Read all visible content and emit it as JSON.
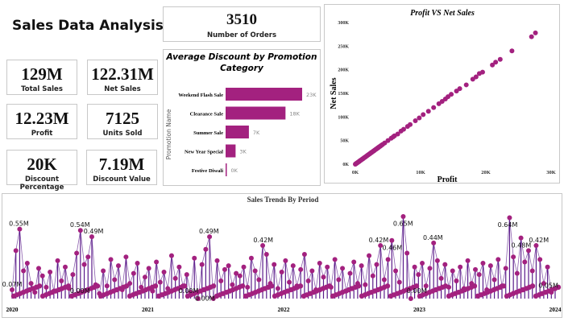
{
  "header": {
    "title": "Sales Data Analysis"
  },
  "kpis": {
    "orders": {
      "value": "3510",
      "label": "Number of Orders"
    },
    "total_sales": {
      "value": "129M",
      "label": "Total Sales"
    },
    "net_sales": {
      "value": "122.31M",
      "label": "Net Sales"
    },
    "profit": {
      "value": "12.23M",
      "label": "Profit"
    },
    "units_sold": {
      "value": "7125",
      "label": "Units Sold"
    },
    "discount_pct": {
      "value": "20K",
      "label": "Discount Percentage"
    },
    "discount_value": {
      "value": "7.19M",
      "label": "Discount Value"
    }
  },
  "colors": {
    "accent": "#a3217f",
    "line": "#5a1a8a",
    "border": "#c8c8c8"
  },
  "chart_data": [
    {
      "type": "bar",
      "orientation": "horizontal",
      "title": "Average Discount by Promotion Category",
      "ylabel": "Promotion Name",
      "categories": [
        "Weekend Flash Sale",
        "Clearance Sale",
        "Summer Sale",
        "New Year Special",
        "Festive Diwali"
      ],
      "values": [
        23000,
        18000,
        7000,
        3000,
        200
      ],
      "data_labels": [
        "23K",
        "18K",
        "7K",
        "3K",
        "0K"
      ]
    },
    {
      "type": "scatter",
      "title": "Profit VS Net Sales",
      "xlabel": "Profit",
      "ylabel": "Net Sales",
      "xlim": [
        0,
        30000
      ],
      "ylim": [
        0,
        300000
      ],
      "xticks": [
        "0K",
        "10K",
        "20K",
        "30K"
      ],
      "yticks": [
        "0K",
        "50K",
        "100K",
        "150K",
        "200K",
        "250K",
        "300K"
      ],
      "points_k": [
        [
          27.6,
          278
        ],
        [
          27,
          270
        ],
        [
          24,
          240
        ],
        [
          22.2,
          222
        ],
        [
          21.5,
          216
        ],
        [
          21,
          210
        ],
        [
          19.5,
          195
        ],
        [
          19,
          192
        ],
        [
          18.5,
          185
        ],
        [
          18,
          180
        ],
        [
          17,
          168
        ],
        [
          16,
          160
        ],
        [
          15.5,
          155
        ],
        [
          14.7,
          148
        ],
        [
          14.2,
          143
        ],
        [
          13.8,
          138
        ],
        [
          13.3,
          133
        ],
        [
          12.8,
          128
        ],
        [
          12,
          120
        ],
        [
          11.2,
          112
        ],
        [
          10.4,
          105
        ],
        [
          9.8,
          98
        ],
        [
          9.2,
          92
        ],
        [
          8.4,
          84
        ],
        [
          8,
          80
        ],
        [
          7.4,
          74
        ],
        [
          7,
          70
        ],
        [
          6.5,
          64
        ],
        [
          6,
          60
        ],
        [
          5.5,
          55
        ],
        [
          5,
          50
        ],
        [
          4.5,
          45
        ],
        [
          4,
          40
        ],
        [
          3.5,
          35
        ],
        [
          3.2,
          32
        ],
        [
          2.8,
          28
        ],
        [
          2.5,
          25
        ],
        [
          2.2,
          22
        ],
        [
          2,
          20
        ],
        [
          1.8,
          18
        ],
        [
          1.5,
          15
        ],
        [
          1.2,
          12
        ],
        [
          1,
          10
        ],
        [
          0.8,
          8
        ],
        [
          0.6,
          6
        ],
        [
          0.4,
          4
        ],
        [
          0.3,
          3
        ],
        [
          0.1,
          1
        ],
        [
          4.2,
          42
        ],
        [
          5.8,
          58
        ]
      ]
    },
    {
      "type": "line",
      "title": "Sales Trends By Period",
      "xticks": [
        "2020",
        "2021",
        "2022",
        "2023",
        "2024"
      ],
      "xlim": [
        2020,
        2024
      ],
      "ylim_millions": [
        0,
        0.7
      ],
      "values_millions": [
        0.07,
        0.38,
        0.55,
        0.22,
        0.28,
        0.12,
        0.05,
        0.24,
        0.18,
        0.09,
        0.21,
        0.06,
        0.3,
        0.14,
        0.25,
        0.08,
        0.19,
        0.36,
        0.54,
        0.27,
        0.33,
        0.49,
        0.11,
        0.04,
        0.22,
        0.1,
        0.31,
        0.15,
        0.26,
        0.07,
        0.33,
        0.12,
        0.2,
        0.28,
        0.09,
        0.17,
        0.24,
        0.06,
        0.29,
        0.13,
        0.21,
        0.08,
        0.34,
        0.16,
        0.25,
        0.1,
        0.19,
        0.05,
        0.32,
        0.0,
        0.27,
        0.39,
        0.49,
        0.0,
        0.3,
        0.14,
        0.23,
        0.26,
        0.11,
        0.2,
        0.18,
        0.25,
        0.09,
        0.32,
        0.22,
        0.15,
        0.42,
        0.35,
        0.12,
        0.27,
        0.08,
        0.21,
        0.3,
        0.13,
        0.26,
        0.1,
        0.23,
        0.35,
        0.14,
        0.22,
        0.07,
        0.28,
        0.17,
        0.25,
        0.09,
        0.31,
        0.15,
        0.24,
        0.06,
        0.2,
        0.29,
        0.12,
        0.26,
        0.11,
        0.34,
        0.18,
        0.27,
        0.42,
        0.15,
        0.31,
        0.46,
        0.22,
        0.13,
        0.65,
        0.36,
        0.0,
        0.25,
        0.19,
        0.28,
        0.1,
        0.24,
        0.44,
        0.3,
        0.16,
        0.27,
        0.09,
        0.22,
        0.14,
        0.25,
        0.08,
        0.3,
        0.12,
        0.23,
        0.19,
        0.28,
        0.07,
        0.26,
        0.15,
        0.31,
        0.1,
        0.24,
        0.64,
        0.33,
        0.2,
        0.48,
        0.29,
        0.38,
        0.22,
        0.42,
        0.31,
        0.12,
        0.25,
        0.05,
        0.08
      ],
      "annotations": [
        {
          "t": 2020.05,
          "v": 0.55,
          "label": "0.55M"
        },
        {
          "t": 2020.0,
          "v": 0.07,
          "label": "0.07M"
        },
        {
          "t": 2020.5,
          "v": 0.54,
          "label": "0.54M"
        },
        {
          "t": 2020.6,
          "v": 0.49,
          "label": "0.49M"
        },
        {
          "t": 2020.5,
          "v": 0.02,
          "label": "0.00M"
        },
        {
          "t": 2021.45,
          "v": 0.49,
          "label": "0.49M"
        },
        {
          "t": 2021.3,
          "v": 0.02,
          "label": "0.00M"
        },
        {
          "t": 2021.42,
          "v": -0.04,
          "label": "0.00M"
        },
        {
          "t": 2021.85,
          "v": 0.42,
          "label": "0.42M"
        },
        {
          "t": 2022.7,
          "v": 0.42,
          "label": "0.42M"
        },
        {
          "t": 2022.8,
          "v": 0.36,
          "label": "0.46M"
        },
        {
          "t": 2022.88,
          "v": 0.55,
          "label": "0.65M"
        },
        {
          "t": 2022.98,
          "v": 0.02,
          "label": "0.00M"
        },
        {
          "t": 2023.1,
          "v": 0.44,
          "label": "0.44M"
        },
        {
          "t": 2023.65,
          "v": 0.54,
          "label": "0.64M"
        },
        {
          "t": 2023.75,
          "v": 0.38,
          "label": "0.48M"
        },
        {
          "t": 2023.88,
          "v": 0.42,
          "label": "0.42M"
        },
        {
          "t": 2023.95,
          "v": 0.06,
          "label": "0.05M"
        }
      ]
    }
  ]
}
